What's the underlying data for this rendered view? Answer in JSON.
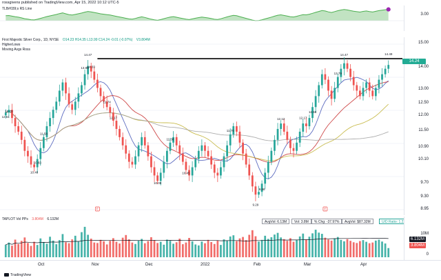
{
  "header": "rossgivens published on TradingView.com, Apr 15, 2022 10:12 UTC-5",
  "footer": "TradingView",
  "colors": {
    "up": "#26a69a",
    "down": "#ef5350",
    "resistance_line": "#000000",
    "rs_line": "#4caf50",
    "rs_fill_up": "#4caf50",
    "rs_fill_down": "#b71c1c",
    "ma_blue": "#3f51b5",
    "ma_red": "#c62828",
    "ma_olive": "#c0b030",
    "ma_gray": "#9e9e9e",
    "rs_marker": "#9c27b0"
  },
  "rs_panel": {
    "legend": "TLB#039;s RS Line",
    "scale_labels": [
      "3.00"
    ]
  },
  "main_panel": {
    "legend": {
      "title": "First Majestic Silver Corp., 1D, NYSE",
      "ohlc": "O14.23  H14.35  L13.99  C14.24  -0.01 (-0.07%)",
      "volume": "V3.804M",
      "line2": "HigherLows",
      "line3": "Moving Avgs Ross"
    },
    "last_price": "14.24",
    "scale_labels": [
      "15.00",
      "14.00",
      "13.00",
      "12.50",
      "12.00",
      "11.50",
      "10.90",
      "10.10",
      "9.70",
      "9.30",
      "8.95"
    ],
    "earnings_marker": "E"
  },
  "volume_panel": {
    "legend": "TAPLOT Vol PPs",
    "legend_value_red": "3.804M",
    "legend_value": "6.132M",
    "stats": {
      "avg_vol": "AvgVol: 6.13M",
      "vol": "Vol: 3.8M",
      "chg": "% Chg: -37.97%",
      "avg_dollar_vol": "AvgVol: $87.32M",
      "ud_ratio": "U/D Ratio: 1.22"
    },
    "scale_labels": [
      "10M",
      "0"
    ],
    "badge_avg": "6.132M",
    "badge_vol": "3.804M"
  },
  "time_axis": [
    "Oct",
    "Nov",
    "Dec",
    "2022",
    "Feb",
    "Mar",
    "Apr"
  ],
  "chart_data": {
    "type": "candlestick",
    "symbol": "AG",
    "x_labels": [
      "Oct",
      "Nov",
      "Dec",
      "2022",
      "Feb",
      "Mar",
      "Apr"
    ],
    "ylim": [
      8.95,
      15.0
    ],
    "resistance_level": 14.47,
    "annotations": [
      {
        "label": "12.74",
        "value": 12.74,
        "kind": "high"
      },
      {
        "label": "10.45",
        "value": 10.45,
        "kind": "low"
      },
      {
        "label": "13.79",
        "value": 13.79,
        "kind": "high"
      },
      {
        "label": "12.51",
        "value": 12.51,
        "kind": "low"
      },
      {
        "label": "14.47",
        "value": 14.47,
        "kind": "high"
      },
      {
        "label": "12.68",
        "value": 12.68,
        "kind": "low"
      },
      {
        "label": "10.48",
        "value": 10.48,
        "kind": "low"
      },
      {
        "label": "11.58",
        "value": 11.58,
        "kind": "high"
      },
      {
        "label": "11.70",
        "value": 11.7,
        "kind": "high"
      },
      {
        "label": "9.86",
        "value": 9.86,
        "kind": "low"
      },
      {
        "label": "11.38",
        "value": 11.38,
        "kind": "high"
      },
      {
        "label": "10.09",
        "value": 10.09,
        "kind": "low"
      },
      {
        "label": "12.12",
        "value": 12.12,
        "kind": "high"
      },
      {
        "label": "9.29",
        "value": 9.29,
        "kind": "low"
      },
      {
        "label": "12.17",
        "value": 12.17,
        "kind": "high"
      },
      {
        "label": "12.17",
        "value": 12.17,
        "kind": "high"
      },
      {
        "label": "10.83",
        "value": 10.83,
        "kind": "low"
      },
      {
        "label": "14.03",
        "value": 14.03,
        "kind": "high"
      },
      {
        "label": "14.49",
        "value": 14.49,
        "kind": "high"
      },
      {
        "label": "14.47",
        "value": 14.47,
        "kind": "high"
      },
      {
        "label": "13.99",
        "value": 13.99,
        "kind": "high"
      },
      {
        "label": "12.70",
        "value": 12.7,
        "kind": "low"
      }
    ],
    "closes": [
      12.5,
      12.6,
      12.3,
      12.0,
      11.8,
      11.5,
      11.1,
      10.9,
      10.6,
      10.5,
      10.8,
      11.2,
      11.6,
      12.0,
      12.3,
      12.6,
      12.9,
      13.3,
      13.6,
      13.2,
      12.8,
      12.6,
      12.9,
      13.2,
      13.5,
      13.9,
      14.2,
      14.0,
      13.7,
      13.4,
      13.1,
      12.9,
      12.7,
      12.5,
      12.2,
      11.9,
      11.6,
      11.3,
      11.0,
      10.7,
      10.6,
      10.9,
      11.3,
      11.6,
      11.3,
      10.9,
      10.5,
      10.2,
      10.0,
      10.3,
      10.7,
      11.1,
      11.4,
      11.6,
      11.3,
      11.0,
      10.7,
      10.4,
      10.2,
      10.5,
      10.8,
      11.1,
      11.3,
      11.1,
      10.9,
      10.6,
      10.3,
      10.2,
      10.5,
      10.9,
      11.3,
      11.7,
      12.0,
      11.8,
      11.4,
      11.0,
      10.6,
      10.2,
      9.8,
      9.5,
      9.6,
      9.9,
      10.3,
      10.7,
      11.1,
      11.5,
      11.9,
      12.1,
      11.8,
      11.5,
      11.2,
      11.1,
      11.4,
      11.8,
      12.1,
      12.0,
      12.3,
      12.7,
      13.1,
      13.5,
      13.9,
      13.7,
      13.3,
      13.0,
      13.4,
      13.8,
      14.1,
      14.3,
      14.1,
      13.8,
      13.5,
      13.3,
      13.1,
      13.4,
      13.6,
      13.3,
      13.1,
      13.4,
      13.7,
      13.9,
      14.1,
      14.24
    ],
    "volume_millions": [
      5.2,
      6.1,
      4.8,
      7.3,
      5.5,
      6.8,
      8.2,
      5.9,
      4.7,
      6.4,
      5.1,
      7.8,
      6.3,
      5.6,
      8.5,
      6.9,
      5.4,
      7.1,
      9.6,
      6.2,
      5.8,
      7.4,
      8.9,
      6.5,
      10.4,
      12.6,
      9.3,
      7.7,
      6.1,
      5.9,
      7.2,
      6.6,
      5.3,
      6.8,
      7.9,
      6.4,
      5.7,
      8.1,
      9.2,
      7.4,
      6.1,
      5.5,
      6.9,
      7.6,
      5.8,
      6.7,
      8.3,
      7.1,
      5.9,
      6.4,
      5.2,
      7.3,
      6.8,
      5.6,
      6.2,
      7.7,
      5.4,
      6.1,
      8.0,
      6.6,
      5.3,
      4.9,
      6.5,
      5.8,
      7.2,
      6.3,
      5.5,
      6.9,
      5.1,
      7.4,
      6.8,
      8.6,
      9.1,
      6.7,
      7.8,
      8.4,
      7.1,
      9.3,
      11.2,
      8.7,
      6.5,
      7.2,
      8.9,
      7.6,
      8.3,
      9.4,
      10.1,
      8.2,
      7.5,
      6.8,
      7.9,
      6.4,
      7.1,
      8.6,
      9.8,
      7.3,
      8.5,
      9.9,
      11.4,
      10.2,
      9.7,
      8.1,
      7.4,
      6.9,
      7.8,
      8.4,
      7.2,
      6.6,
      7.5,
      6.8,
      6.2,
      5.9,
      6.7,
      7.1,
      6.4,
      5.8,
      6.1,
      6.9,
      7.3,
      6.5,
      5.7,
      3.8
    ]
  }
}
